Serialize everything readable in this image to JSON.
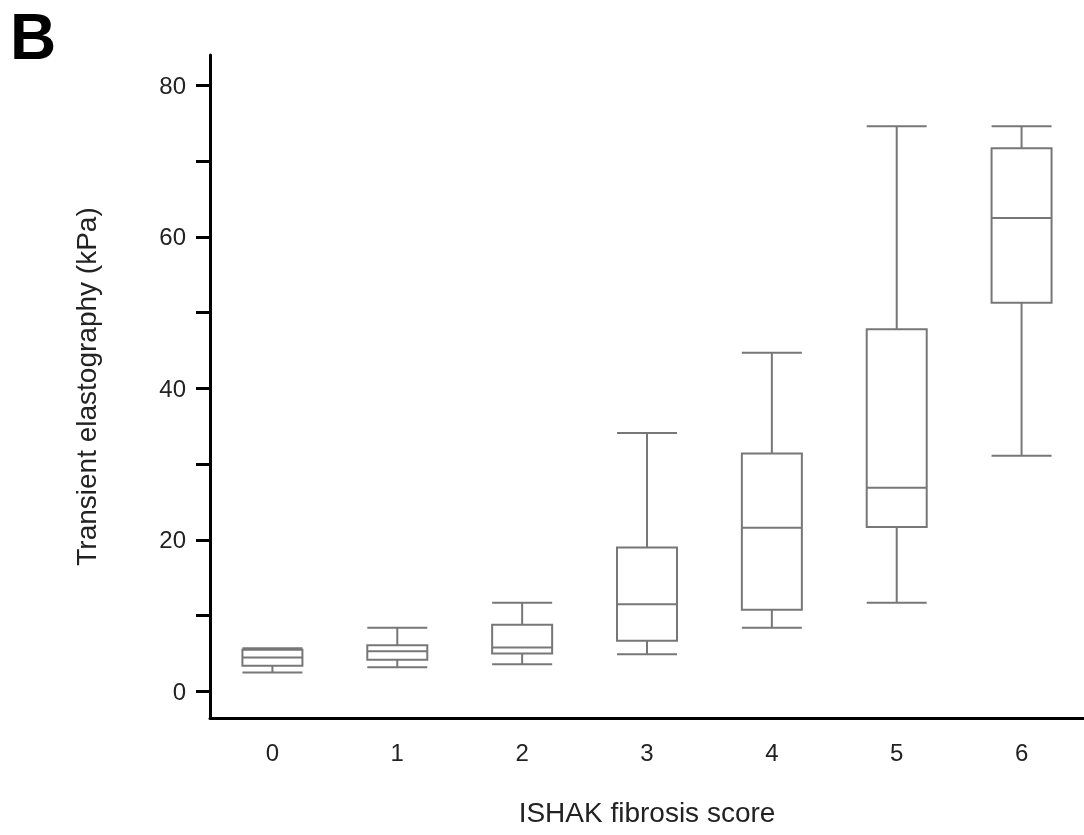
{
  "chart_data": {
    "type": "box",
    "xlabel": "ISHAK fibrosis score",
    "ylabel": "Transient elastography (kPa)",
    "annotations": [
      "B"
    ],
    "categories": [
      "0",
      "1",
      "2",
      "3",
      "4",
      "5",
      "6"
    ],
    "series": [
      {
        "color": "#777777",
        "boxes": [
          {
            "low": 2.5,
            "q1": 3.4,
            "median": 4.5,
            "q3": 5.5,
            "high": 5.7
          },
          {
            "low": 3.2,
            "q1": 4.2,
            "median": 5.3,
            "q3": 6.1,
            "high": 8.4
          },
          {
            "low": 3.6,
            "q1": 5.0,
            "median": 5.8,
            "q3": 8.8,
            "high": 11.7
          },
          {
            "low": 4.9,
            "q1": 6.7,
            "median": 11.5,
            "q3": 19.0,
            "high": 34.1
          },
          {
            "low": 8.4,
            "q1": 10.8,
            "median": 21.6,
            "q3": 31.4,
            "high": 44.7
          },
          {
            "low": 11.7,
            "q1": 21.7,
            "median": 26.9,
            "q3": 47.8,
            "high": 74.6
          },
          {
            "low": 31.1,
            "q1": 51.3,
            "median": 62.5,
            "q3": 71.7,
            "high": 74.6
          }
        ]
      }
    ],
    "ylim": [
      -3.5,
      84
    ],
    "yticks": [
      0,
      {
        "value": 10,
        "label": null
      },
      20,
      {
        "value": 30,
        "label": null
      },
      40,
      {
        "value": 50,
        "label": null
      },
      60,
      {
        "value": 70,
        "label": null
      },
      80
    ],
    "grid": false
  }
}
